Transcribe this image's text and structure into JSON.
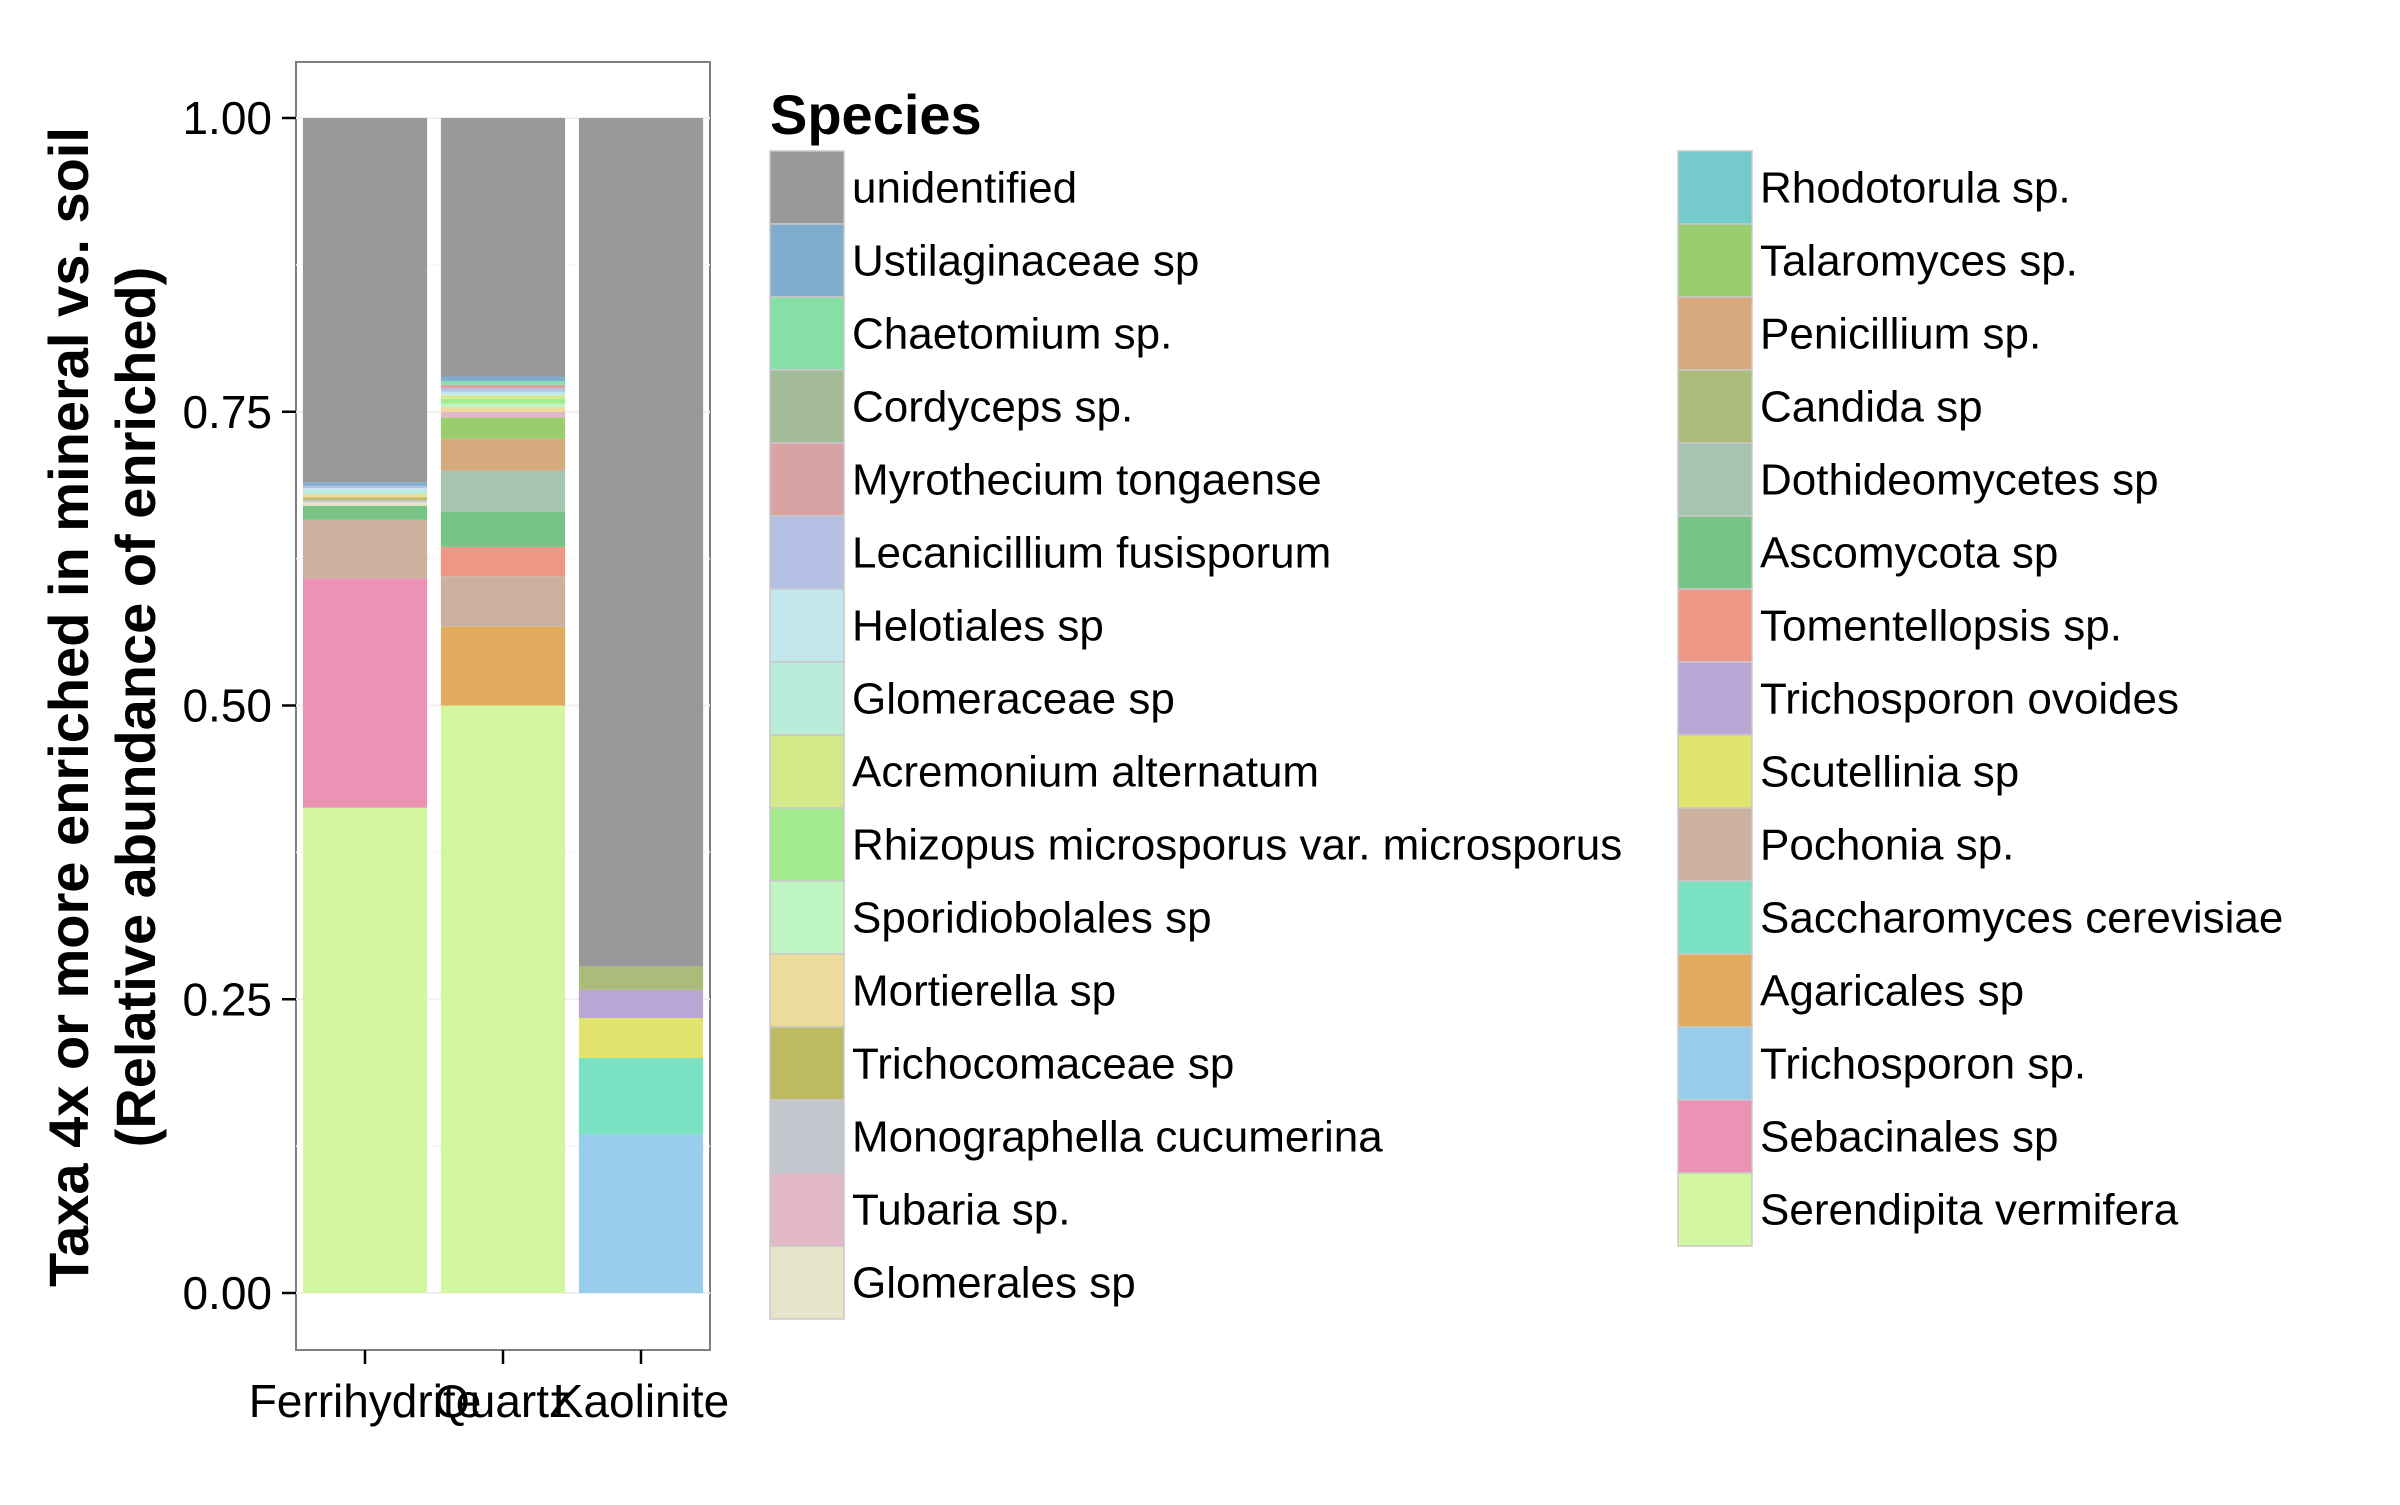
{
  "chart_data": {
    "type": "bar",
    "stacked": true,
    "ylabel_line1": "Taxa 4x or more enriched in mineral vs. soil",
    "ylabel_line2": "(Relative abundance of enriched)",
    "xlabel": "",
    "categories": [
      "Ferrihydrite",
      "Quartz",
      "Kaolinite"
    ],
    "ylim": [
      0,
      1
    ],
    "yticks": [
      0,
      0.25,
      0.5,
      0.75,
      1
    ],
    "ytick_labels": [
      "0.00",
      "0.25",
      "0.50",
      "0.75",
      "1.00"
    ],
    "grid": true,
    "legend_title": "Species",
    "legend_position": "right",
    "series": [
      {
        "name": "Serendipita vermifera",
        "color": "#D2F7A0",
        "values": [
          0.413,
          0.5,
          0
        ]
      },
      {
        "name": "Sebacinales sp",
        "color": "#EC92B5",
        "values": [
          0.195,
          0,
          0
        ]
      },
      {
        "name": "Trichosporon sp.",
        "color": "#98CDEB",
        "values": [
          0,
          0,
          0.135
        ]
      },
      {
        "name": "Agaricales sp",
        "color": "#E1AC5D",
        "values": [
          0,
          0.067,
          0
        ]
      },
      {
        "name": "Saccharomyces cerevisiae",
        "color": "#7AE2C3",
        "values": [
          0,
          0,
          0.065
        ]
      },
      {
        "name": "Pochonia sp.",
        "color": "#CCB19E",
        "values": [
          0.05,
          0.043,
          0
        ]
      },
      {
        "name": "Scutellinia sp",
        "color": "#E1E56D",
        "values": [
          0,
          0,
          0.034
        ]
      },
      {
        "name": "Trichosporon ovoides",
        "color": "#B9A6D5",
        "values": [
          0,
          0,
          0.024
        ]
      },
      {
        "name": "Tomentellopsis sp.",
        "color": "#EF9786",
        "values": [
          0,
          0.025,
          0
        ]
      },
      {
        "name": "Ascomycota sp",
        "color": "#77C484",
        "values": [
          0.012,
          0.03,
          0
        ]
      },
      {
        "name": "Dothideomycetes sp",
        "color": "#A6C4B1",
        "values": [
          0,
          0.035,
          0
        ]
      },
      {
        "name": "Candida sp",
        "color": "#ABBB7A",
        "values": [
          0,
          0,
          0.02
        ]
      },
      {
        "name": "Penicillium sp.",
        "color": "#D6AA7C",
        "values": [
          0,
          0.027,
          0
        ]
      },
      {
        "name": "Talaromyces sp.",
        "color": "#99CD6E",
        "values": [
          0,
          0.018,
          0
        ]
      },
      {
        "name": "Rhodotorula sp.",
        "color": "#75CACB",
        "values": [
          0,
          0,
          0
        ]
      },
      {
        "name": "Glomerales sp",
        "color": "#E6E5CA",
        "values": [
          0.003,
          0,
          0
        ]
      },
      {
        "name": "Tubaria sp.",
        "color": "#E2B7C8",
        "values": [
          0,
          0.005,
          0
        ]
      },
      {
        "name": "Monographella cucumerina",
        "color": "#C1C7CD",
        "values": [
          0.002,
          0,
          0
        ]
      },
      {
        "name": "Trichocomaceae sp",
        "color": "#BDBB62",
        "values": [
          0.002,
          0,
          0
        ]
      },
      {
        "name": "Mortierella sp",
        "color": "#ECDB9A",
        "values": [
          0.003,
          0.004,
          0
        ]
      },
      {
        "name": "Sporidiobolales sp",
        "color": "#BFF5C1",
        "values": [
          0,
          0.003,
          0
        ]
      },
      {
        "name": "Rhizopus microsporus var. microsporus",
        "color": "#A5EC91",
        "values": [
          0,
          0.004,
          0
        ]
      },
      {
        "name": "Acremonium alternatum",
        "color": "#D6E98A",
        "values": [
          0,
          0.003,
          0
        ]
      },
      {
        "name": "Glomeraceae sp",
        "color": "#B9EDDA",
        "values": [
          0.003,
          0,
          0
        ]
      },
      {
        "name": "Helotiales sp",
        "color": "#C2E8ED",
        "values": [
          0.002,
          0.003,
          0
        ]
      },
      {
        "name": "Lecanicillium fusisporum",
        "color": "#B4C1E5",
        "values": [
          0.002,
          0.003,
          0
        ]
      },
      {
        "name": "Myrothecium tongaense",
        "color": "#D9A2A3",
        "values": [
          0,
          0.003,
          0
        ]
      },
      {
        "name": "Cordyceps sp.",
        "color": "#A3BB96",
        "values": [
          0,
          0,
          0
        ]
      },
      {
        "name": "Chaetomium sp.",
        "color": "#86E0A6",
        "values": [
          0,
          0.003,
          0
        ]
      },
      {
        "name": "Ustilaginaceae sp",
        "color": "#7EADCD",
        "values": [
          0.003,
          0.004,
          0
        ]
      },
      {
        "name": "unidentified",
        "color": "#999999",
        "values": [
          0.31,
          0.22,
          0.722
        ]
      }
    ],
    "legend_columns": [
      [
        "unidentified",
        "Ustilaginaceae sp",
        "Chaetomium sp.",
        "Cordyceps sp.",
        "Myrothecium tongaense",
        "Lecanicillium fusisporum",
        "Helotiales sp",
        "Glomeraceae sp",
        "Acremonium alternatum",
        "Rhizopus microsporus var. microsporus",
        "Sporidiobolales sp",
        "Mortierella sp",
        "Trichocomaceae sp",
        "Monographella cucumerina",
        "Tubaria sp.",
        "Glomerales sp"
      ],
      [
        "Rhodotorula sp.",
        "Talaromyces sp.",
        "Penicillium sp.",
        "Candida sp",
        "Dothideomycetes sp",
        "Ascomycota sp",
        "Tomentellopsis sp.",
        "Trichosporon ovoides",
        "Scutellinia sp",
        "Pochonia sp.",
        "Saccharomyces cerevisiae",
        "Agaricales sp",
        "Trichosporon sp.",
        "Sebacinales sp",
        "Serendipita vermifera"
      ]
    ]
  }
}
